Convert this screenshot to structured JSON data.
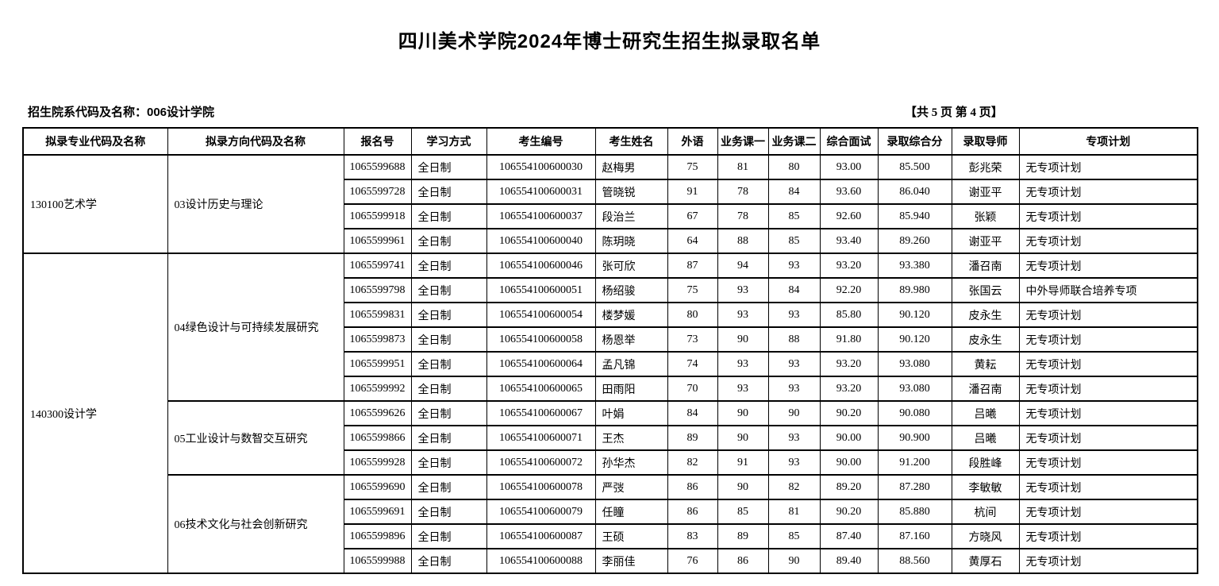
{
  "page": {
    "title": "四川美术学院2024年博士研究生招生拟录取名单",
    "dept_label": "招生院系代码及名称：006设计学院",
    "page_indicator": "【共 5 页 第 4 页】"
  },
  "table": {
    "columns": [
      "拟录专业代码及名称",
      "拟录方向代码及名称",
      "报名号",
      "学习方式",
      "考生编号",
      "考生姓名",
      "外语",
      "业务课一",
      "业务课二",
      "综合面试",
      "录取综合分",
      "录取导师",
      "专项计划"
    ],
    "majors": [
      {
        "major": "130100艺术学",
        "directions": [
          {
            "direction": "03设计历史与理论",
            "rows": [
              [
                "1065599688",
                "全日制",
                "106554100600030",
                "赵梅男",
                "75",
                "81",
                "80",
                "93.00",
                "85.500",
                "彭兆荣",
                "无专项计划"
              ],
              [
                "1065599728",
                "全日制",
                "106554100600031",
                "管晓锐",
                "91",
                "78",
                "84",
                "93.60",
                "86.040",
                "谢亚平",
                "无专项计划"
              ],
              [
                "1065599918",
                "全日制",
                "106554100600037",
                "段治兰",
                "67",
                "78",
                "85",
                "92.60",
                "85.940",
                "张颖",
                "无专项计划"
              ],
              [
                "1065599961",
                "全日制",
                "106554100600040",
                "陈玥晓",
                "64",
                "88",
                "85",
                "93.40",
                "89.260",
                "谢亚平",
                "无专项计划"
              ]
            ]
          }
        ]
      },
      {
        "major": "140300设计学",
        "directions": [
          {
            "direction": "04绿色设计与可持续发展研究",
            "rows": [
              [
                "1065599741",
                "全日制",
                "106554100600046",
                "张可欣",
                "87",
                "94",
                "93",
                "93.20",
                "93.380",
                "潘召南",
                "无专项计划"
              ],
              [
                "1065599798",
                "全日制",
                "106554100600051",
                "杨绍骏",
                "75",
                "93",
                "84",
                "92.20",
                "89.980",
                "张国云",
                "中外导师联合培养专项"
              ],
              [
                "1065599831",
                "全日制",
                "106554100600054",
                "楼梦媛",
                "80",
                "93",
                "93",
                "85.80",
                "90.120",
                "皮永生",
                "无专项计划"
              ],
              [
                "1065599873",
                "全日制",
                "106554100600058",
                "杨恩举",
                "73",
                "90",
                "88",
                "91.80",
                "90.120",
                "皮永生",
                "无专项计划"
              ],
              [
                "1065599951",
                "全日制",
                "106554100600064",
                "孟凡锦",
                "74",
                "93",
                "93",
                "93.20",
                "93.080",
                "黄耘",
                "无专项计划"
              ],
              [
                "1065599992",
                "全日制",
                "106554100600065",
                "田雨阳",
                "70",
                "93",
                "93",
                "93.20",
                "93.080",
                "潘召南",
                "无专项计划"
              ]
            ]
          },
          {
            "direction": "05工业设计与数智交互研究",
            "rows": [
              [
                "1065599626",
                "全日制",
                "106554100600067",
                "叶娟",
                "84",
                "90",
                "90",
                "90.20",
                "90.080",
                "吕曦",
                "无专项计划"
              ],
              [
                "1065599866",
                "全日制",
                "106554100600071",
                "王杰",
                "89",
                "90",
                "93",
                "90.00",
                "90.900",
                "吕曦",
                "无专项计划"
              ],
              [
                "1065599928",
                "全日制",
                "106554100600072",
                "孙华杰",
                "82",
                "91",
                "93",
                "90.00",
                "91.200",
                "段胜峰",
                "无专项计划"
              ]
            ]
          },
          {
            "direction": "06技术文化与社会创新研究",
            "rows": [
              [
                "1065599690",
                "全日制",
                "106554100600078",
                "严弢",
                "86",
                "90",
                "82",
                "89.20",
                "87.280",
                "李敏敏",
                "无专项计划"
              ],
              [
                "1065599691",
                "全日制",
                "106554100600079",
                "任瞳",
                "86",
                "85",
                "81",
                "90.20",
                "85.880",
                "杭间",
                "无专项计划"
              ],
              [
                "1065599896",
                "全日制",
                "106554100600087",
                "王硕",
                "83",
                "89",
                "85",
                "87.40",
                "87.160",
                "方晓风",
                "无专项计划"
              ],
              [
                "1065599988",
                "全日制",
                "106554100600088",
                "李丽佳",
                "76",
                "86",
                "90",
                "89.40",
                "88.560",
                "黄厚石",
                "无专项计划"
              ]
            ]
          }
        ]
      }
    ]
  }
}
